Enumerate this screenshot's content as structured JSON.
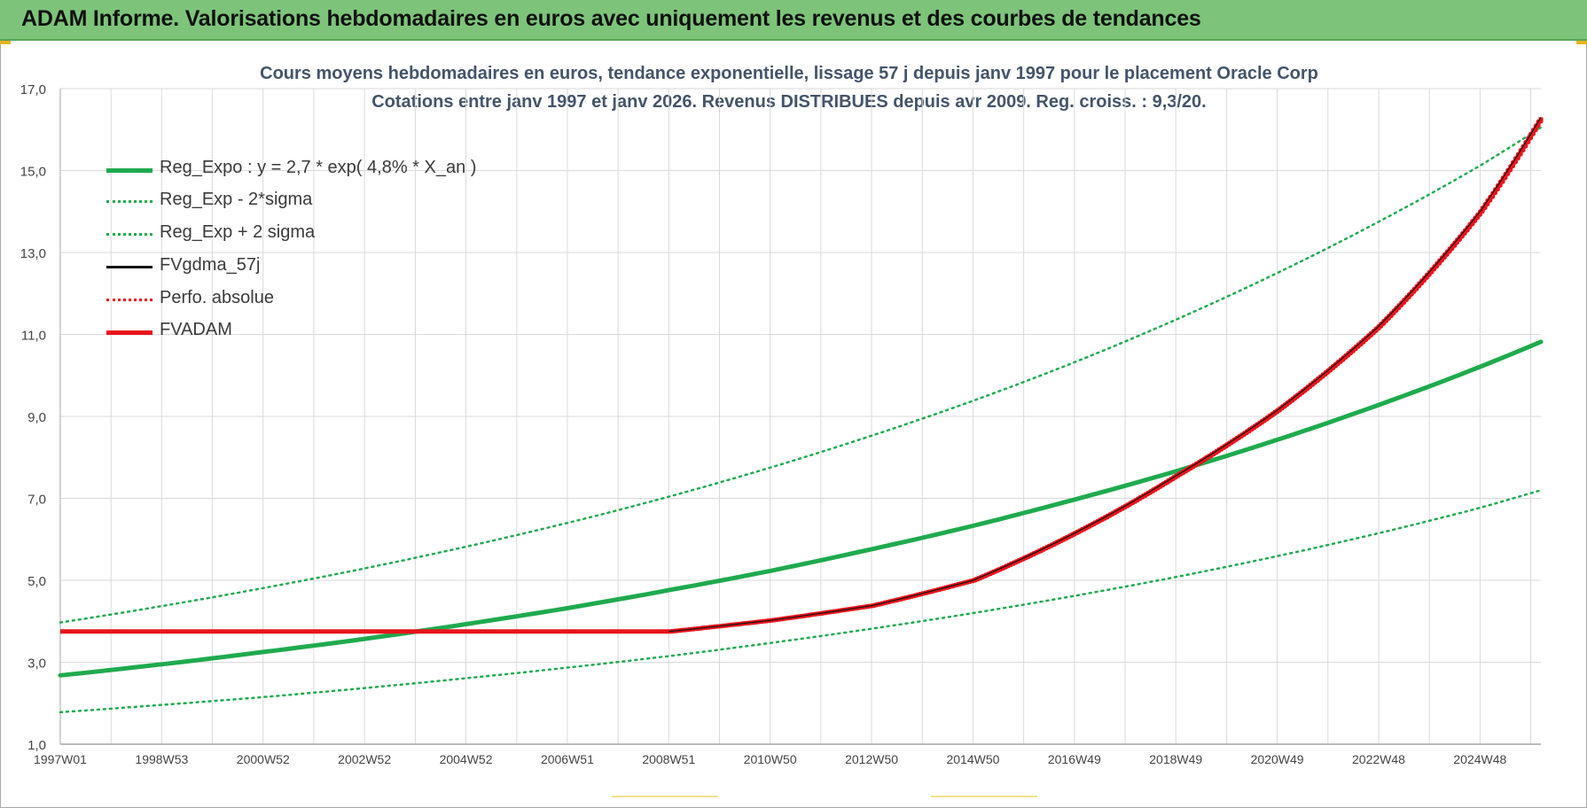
{
  "header": {
    "title": "ADAM Informe. Valorisations hebdomadaires en euros avec uniquement les revenus et des courbes de tendances"
  },
  "colors": {
    "header_bg": "#7dc47a",
    "grid": "#d9d9d9",
    "reg_green": "#1faa4e",
    "fvadam_red": "#e8141b",
    "black": "#111111",
    "title_text": "#44546a"
  },
  "chart_data": {
    "type": "line",
    "title_line1": "Cours moyens hebdomadaires en euros, tendance exponentielle, lissage 57 j depuis janv 1997 pour le placement Oracle Corp",
    "title_line2": "Cotations entre janv 1997 et janv 2026. Revenus DISTRIBUES depuis avr 2009. Reg. croiss. : 9,3/20.",
    "xlabel": "",
    "ylabel": "",
    "x_range": [
      1997.0,
      2026.2
    ],
    "ylim": [
      1.0,
      17.0
    ],
    "y_ticks": [
      "1,0",
      "3,0",
      "5,0",
      "7,0",
      "9,0",
      "11,0",
      "13,0",
      "15,0",
      "17,0"
    ],
    "y_tick_values": [
      1,
      3,
      5,
      7,
      9,
      11,
      13,
      15,
      17
    ],
    "x_ticks": [
      "1997W01",
      "1998W53",
      "2000W52",
      "2002W52",
      "2004W52",
      "2006W51",
      "2008W51",
      "2010W50",
      "2012W50",
      "2014W50",
      "2016W49",
      "2018W49",
      "2020W49",
      "2022W48",
      "2024W48"
    ],
    "x_tick_values": [
      1997.0,
      1999.0,
      2001.0,
      2003.0,
      2005.0,
      2007.0,
      2009.0,
      2011.0,
      2013.0,
      2015.0,
      2017.0,
      2019.0,
      2021.0,
      2023.0,
      2025.0
    ],
    "grid": true,
    "legend_position": "top-left",
    "legend": [
      {
        "label": "Reg_Expo : y = 2,7 * exp( 4,8% *  X_an )",
        "color": "#1faa4e",
        "style": "solid-thick"
      },
      {
        "label": "Reg_Exp - 2*sigma",
        "color": "#1faa4e",
        "style": "dotted"
      },
      {
        "label": "Reg_Exp + 2 sigma",
        "color": "#1faa4e",
        "style": "dotted"
      },
      {
        "label": "FVgdma_57j",
        "color": "#111111",
        "style": "solid"
      },
      {
        "label": "Perfo. absolue",
        "color": "#e8141b",
        "style": "dotted"
      },
      {
        "label": "FVADAM",
        "color": "#e8141b",
        "style": "solid-thick"
      }
    ],
    "series": [
      {
        "name": "Reg_Expo : y = 2,7 * exp( 4,8% *  X_an )",
        "x": [
          1997,
          1999,
          2001,
          2003,
          2005,
          2007,
          2009,
          2011,
          2013,
          2015,
          2017,
          2019,
          2021,
          2023,
          2025,
          2026.2
        ],
        "values": [
          2.68,
          2.95,
          3.25,
          3.57,
          3.93,
          4.32,
          4.76,
          5.23,
          5.76,
          6.33,
          6.97,
          7.66,
          8.43,
          9.28,
          10.21,
          10.82
        ]
      },
      {
        "name": "Reg_Exp - 2*sigma",
        "x": [
          1997,
          1999,
          2001,
          2003,
          2005,
          2007,
          2009,
          2011,
          2013,
          2015,
          2017,
          2019,
          2021,
          2023,
          2025,
          2026.2
        ],
        "values": [
          1.78,
          1.96,
          2.15,
          2.37,
          2.61,
          2.87,
          3.15,
          3.47,
          3.82,
          4.2,
          4.62,
          5.08,
          5.59,
          6.15,
          6.77,
          7.2
        ]
      },
      {
        "name": "Reg_Exp + 2 sigma",
        "x": [
          1997,
          1999,
          2001,
          2003,
          2005,
          2007,
          2009,
          2011,
          2013,
          2015,
          2017,
          2019,
          2021,
          2023,
          2025,
          2026.2
        ],
        "values": [
          3.97,
          4.37,
          4.81,
          5.29,
          5.82,
          6.4,
          7.04,
          7.75,
          8.53,
          9.38,
          10.32,
          11.36,
          12.5,
          13.75,
          15.12,
          16.05
        ]
      },
      {
        "name": "FVgdma_57j",
        "x": [
          1997,
          2009,
          2011,
          2013,
          2015,
          2017,
          2019,
          2021,
          2023,
          2025,
          2026.2
        ],
        "values": [
          3.75,
          3.75,
          4.02,
          4.38,
          5.0,
          6.15,
          7.55,
          9.15,
          11.2,
          14.0,
          16.3
        ]
      },
      {
        "name": "FVADAM",
        "x": [
          1997,
          2009,
          2011,
          2013,
          2015,
          2017,
          2019,
          2021,
          2023,
          2025,
          2026.2
        ],
        "values": [
          3.75,
          3.75,
          4.02,
          4.38,
          5.0,
          6.15,
          7.55,
          9.15,
          11.2,
          14.0,
          16.3
        ]
      }
    ]
  }
}
